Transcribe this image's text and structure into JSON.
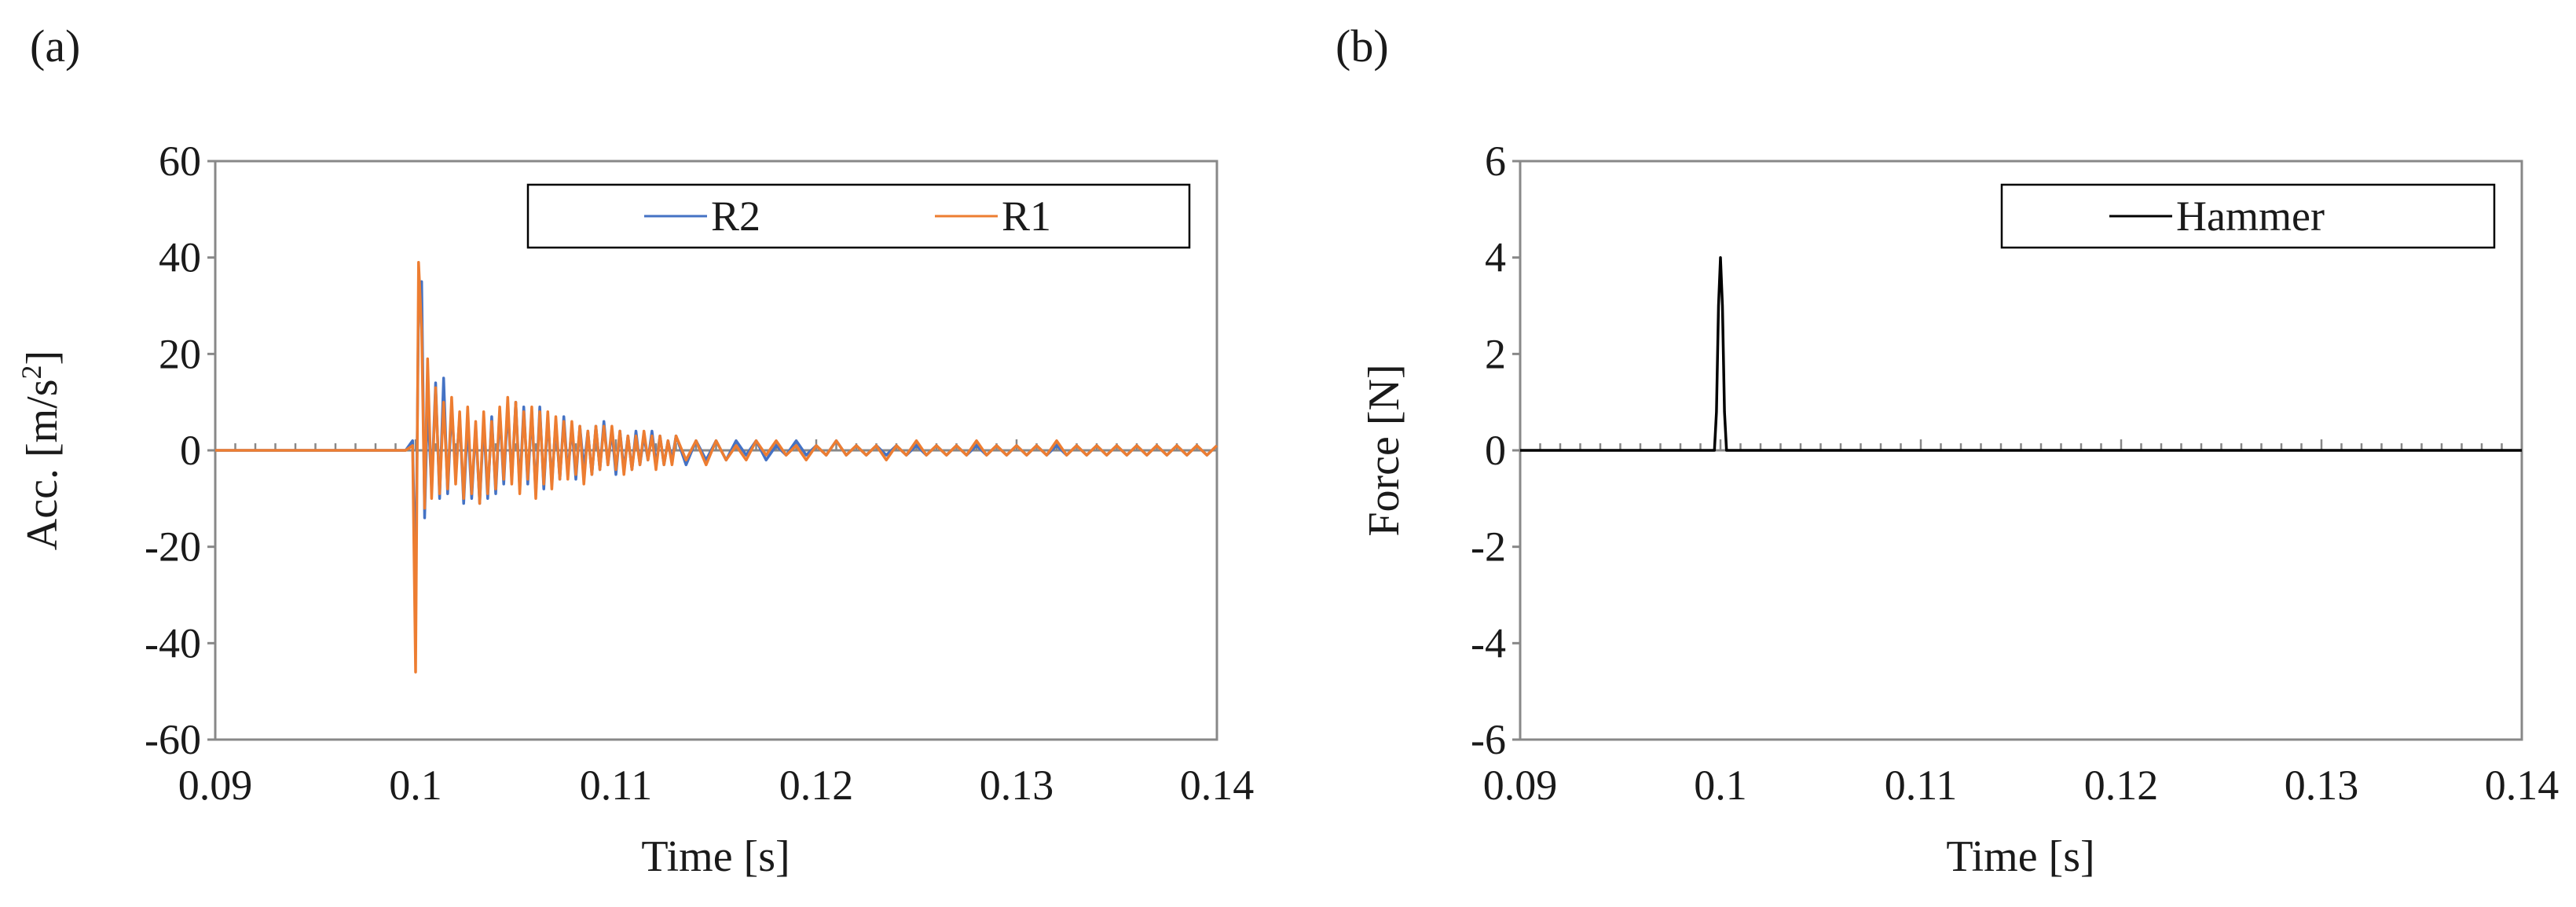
{
  "panels": [
    {
      "label": "(a)"
    },
    {
      "label": "(b)"
    }
  ],
  "chart_data": [
    {
      "type": "line",
      "panel": "(a)",
      "title": "",
      "xlabel": "Time [s]",
      "ylabel_prefix": "Acc. [m/s",
      "ylabel_sup": "2",
      "ylabel_suffix": "]",
      "xlim": [
        0.09,
        0.14
      ],
      "ylim": [
        -60,
        60
      ],
      "xticks": [
        0.09,
        0.1,
        0.11,
        0.12,
        0.13,
        0.14
      ],
      "xtick_labels": [
        "0.09",
        "0.1",
        "0.11",
        "0.12",
        "0.13",
        "0.14"
      ],
      "yticks": [
        60,
        40,
        20,
        0,
        -20,
        -40,
        -60
      ],
      "ytick_labels": [
        "60",
        "40",
        "20",
        "0",
        "-20",
        "-40",
        "-60"
      ],
      "legend": {
        "position": "top-right",
        "entries": [
          "R2",
          "R1"
        ]
      },
      "grid": false,
      "series": [
        {
          "name": "R2",
          "color": "#4472c4",
          "x": [
            0.09,
            0.0995,
            0.09985,
            0.1,
            0.10015,
            0.1003,
            0.10045,
            0.1006,
            0.1008,
            0.101,
            0.1012,
            0.1014,
            0.1016,
            0.1018,
            0.102,
            0.1022,
            0.1024,
            0.1026,
            0.1028,
            0.103,
            0.1032,
            0.1034,
            0.1036,
            0.1038,
            0.104,
            0.1042,
            0.1044,
            0.1046,
            0.1048,
            0.105,
            0.1052,
            0.1054,
            0.1056,
            0.1058,
            0.106,
            0.1062,
            0.1064,
            0.1066,
            0.1068,
            0.107,
            0.1072,
            0.1074,
            0.1076,
            0.1078,
            0.108,
            0.1082,
            0.1084,
            0.1086,
            0.1088,
            0.109,
            0.1092,
            0.1094,
            0.1096,
            0.1098,
            0.11,
            0.1102,
            0.1104,
            0.1106,
            0.1108,
            0.111,
            0.1112,
            0.1114,
            0.1116,
            0.1118,
            0.112,
            0.1122,
            0.1124,
            0.1126,
            0.1128,
            0.113,
            0.1135,
            0.114,
            0.1145,
            0.115,
            0.1155,
            0.116,
            0.1165,
            0.117,
            0.1175,
            0.118,
            0.1185,
            0.119,
            0.1195,
            0.12,
            0.1205,
            0.121,
            0.1215,
            0.122,
            0.1225,
            0.123,
            0.1235,
            0.124,
            0.1245,
            0.125,
            0.1255,
            0.126,
            0.1265,
            0.127,
            0.1275,
            0.128,
            0.1285,
            0.129,
            0.1295,
            0.13,
            0.1305,
            0.131,
            0.1315,
            0.132,
            0.1325,
            0.133,
            0.1335,
            0.134,
            0.1345,
            0.135,
            0.1355,
            0.136,
            0.1365,
            0.137,
            0.1375,
            0.138,
            0.1385,
            0.139,
            0.1395,
            0.14
          ],
          "values": [
            0,
            0,
            2,
            -30,
            30,
            35,
            -14,
            10,
            -8,
            14,
            -10,
            15,
            -9,
            9,
            -5,
            7,
            -11,
            6,
            -10,
            5,
            -11,
            6,
            -10,
            7,
            -9,
            8,
            -7,
            9,
            -6,
            10,
            -8,
            9,
            -7,
            8,
            -9,
            9,
            -8,
            7,
            -7,
            6,
            -6,
            7,
            -5,
            5,
            -6,
            5,
            -4,
            4,
            -5,
            5,
            -4,
            6,
            -3,
            4,
            -5,
            4,
            -4,
            3,
            -4,
            4,
            -3,
            3,
            -2,
            4,
            -3,
            3,
            -3,
            2,
            -2,
            3,
            -3,
            2,
            -2,
            2,
            -2,
            2,
            -1,
            2,
            -2,
            1,
            -1,
            2,
            -1,
            1,
            -1,
            2,
            -1,
            1,
            -1,
            1,
            -1,
            1,
            -1,
            1,
            -1,
            1,
            -1,
            1,
            -1,
            1,
            -1,
            1,
            -1,
            1,
            -1,
            1,
            -1,
            1,
            -1,
            1,
            -1,
            1,
            -1,
            1,
            -1,
            1,
            -1,
            1,
            -1,
            1,
            -1,
            1,
            -1,
            1
          ]
        },
        {
          "name": "R1",
          "color": "#ed7d31",
          "x": [
            0.09,
            0.0995,
            0.09985,
            0.1,
            0.10015,
            0.1003,
            0.10045,
            0.1006,
            0.1008,
            0.101,
            0.1012,
            0.1014,
            0.1016,
            0.1018,
            0.102,
            0.1022,
            0.1024,
            0.1026,
            0.1028,
            0.103,
            0.1032,
            0.1034,
            0.1036,
            0.1038,
            0.104,
            0.1042,
            0.1044,
            0.1046,
            0.1048,
            0.105,
            0.1052,
            0.1054,
            0.1056,
            0.1058,
            0.106,
            0.1062,
            0.1064,
            0.1066,
            0.1068,
            0.107,
            0.1072,
            0.1074,
            0.1076,
            0.1078,
            0.108,
            0.1082,
            0.1084,
            0.1086,
            0.1088,
            0.109,
            0.1092,
            0.1094,
            0.1096,
            0.1098,
            0.11,
            0.1102,
            0.1104,
            0.1106,
            0.1108,
            0.111,
            0.1112,
            0.1114,
            0.1116,
            0.1118,
            0.112,
            0.1122,
            0.1124,
            0.1126,
            0.1128,
            0.113,
            0.1135,
            0.114,
            0.1145,
            0.115,
            0.1155,
            0.116,
            0.1165,
            0.117,
            0.1175,
            0.118,
            0.1185,
            0.119,
            0.1195,
            0.12,
            0.1205,
            0.121,
            0.1215,
            0.122,
            0.1225,
            0.123,
            0.1235,
            0.124,
            0.1245,
            0.125,
            0.1255,
            0.126,
            0.1265,
            0.127,
            0.1275,
            0.128,
            0.1285,
            0.129,
            0.1295,
            0.13,
            0.1305,
            0.131,
            0.1315,
            0.132,
            0.1325,
            0.133,
            0.1335,
            0.134,
            0.1345,
            0.135,
            0.1355,
            0.136,
            0.1365,
            0.137,
            0.1375,
            0.138,
            0.1385,
            0.139,
            0.1395,
            0.14
          ],
          "values": [
            0,
            0,
            1,
            -46,
            39,
            25,
            -12,
            19,
            -10,
            13,
            -9,
            10,
            -8,
            11,
            -7,
            8,
            -10,
            9,
            -9,
            6,
            -11,
            8,
            -9,
            6,
            -8,
            9,
            -6,
            11,
            -7,
            10,
            -9,
            8,
            -6,
            9,
            -10,
            8,
            -7,
            8,
            -8,
            7,
            -6,
            6,
            -6,
            6,
            -5,
            5,
            -7,
            4,
            -5,
            5,
            -4,
            5,
            -3,
            5,
            -4,
            4,
            -5,
            3,
            -4,
            3,
            -3,
            4,
            -2,
            3,
            -4,
            3,
            -3,
            2,
            -3,
            3,
            -2,
            2,
            -3,
            2,
            -2,
            1,
            -2,
            2,
            -1,
            2,
            -1,
            1,
            -2,
            1,
            -1,
            2,
            -1,
            1,
            -1,
            1,
            -2,
            1,
            -1,
            2,
            -1,
            1,
            -1,
            1,
            -1,
            2,
            -1,
            1,
            -1,
            1,
            -1,
            1,
            -1,
            2,
            -1,
            1,
            -1,
            1,
            -1,
            1,
            -1,
            1,
            -1,
            1,
            -1,
            1,
            -1,
            1,
            -1,
            1
          ]
        }
      ]
    },
    {
      "type": "line",
      "panel": "(b)",
      "title": "",
      "xlabel": "Time [s]",
      "ylabel": "Force [N]",
      "xlim": [
        0.09,
        0.14
      ],
      "ylim": [
        -6,
        6
      ],
      "xticks": [
        0.09,
        0.1,
        0.11,
        0.12,
        0.13,
        0.14
      ],
      "xtick_labels": [
        "0.09",
        "0.1",
        "0.11",
        "0.12",
        "0.13",
        "0.14"
      ],
      "yticks": [
        6,
        4,
        2,
        0,
        -2,
        -4,
        -6
      ],
      "ytick_labels": [
        "6",
        "4",
        "2",
        "0",
        "-2",
        "-4",
        "-6"
      ],
      "legend": {
        "position": "top-right",
        "entries": [
          "Hammer"
        ]
      },
      "grid": false,
      "series": [
        {
          "name": "Hammer",
          "color": "#000000",
          "x": [
            0.09,
            0.0997,
            0.0998,
            0.0999,
            0.1,
            0.1001,
            0.1002,
            0.1003,
            0.14
          ],
          "values": [
            0,
            0,
            0.8,
            3.0,
            4.0,
            3.0,
            0.8,
            0,
            0
          ]
        }
      ]
    }
  ]
}
